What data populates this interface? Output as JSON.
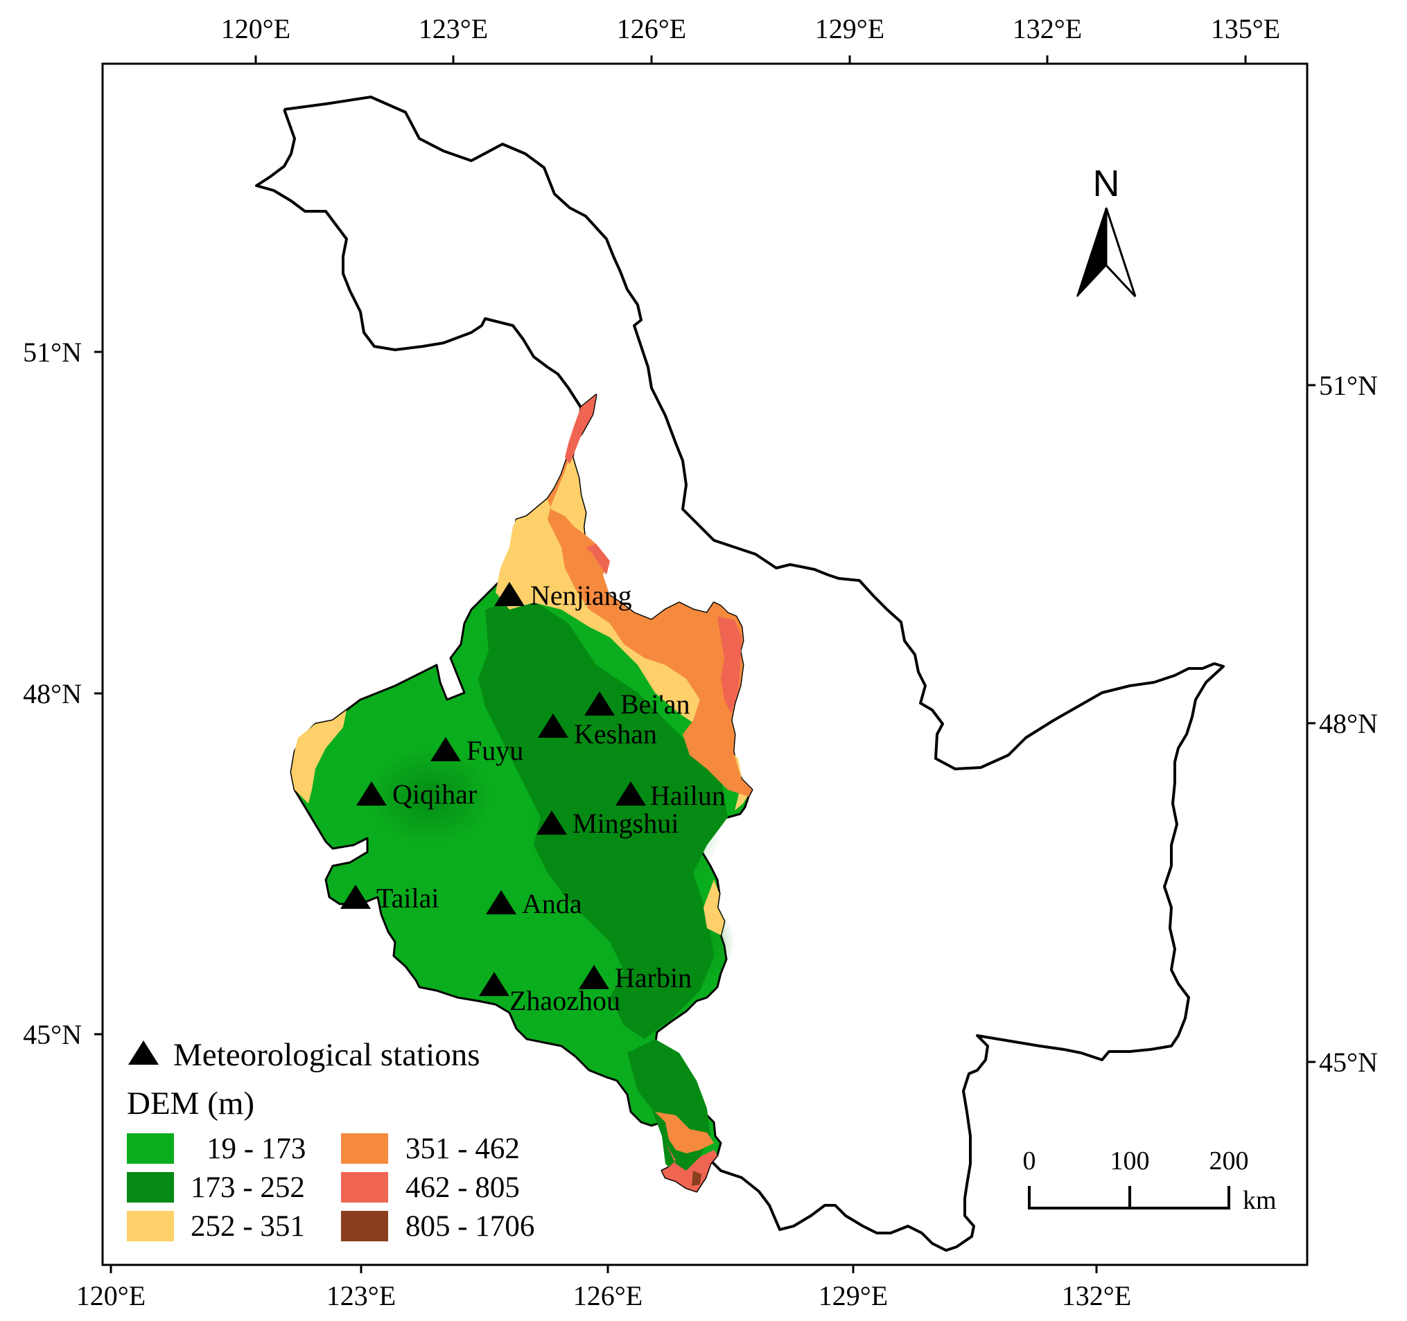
{
  "map": {
    "top_lon_ticks": [
      "120°E",
      "123°E",
      "126°E",
      "129°E",
      "132°E",
      "135°E"
    ],
    "bottom_lon_ticks": [
      "120°E",
      "123°E",
      "126°E",
      "129°E",
      "132°E"
    ],
    "left_lat_ticks": [
      "51°N",
      "48°N",
      "45°N"
    ],
    "right_lat_ticks": [
      "51°N",
      "48°N",
      "45°N"
    ],
    "north_arrow_label": "N",
    "stations": [
      {
        "name": "Nenjiang"
      },
      {
        "name": "Bei'an"
      },
      {
        "name": "Keshan"
      },
      {
        "name": "Fuyu"
      },
      {
        "name": "Qiqihar"
      },
      {
        "name": "Hailun"
      },
      {
        "name": "Mingshui"
      },
      {
        "name": "Tailai"
      },
      {
        "name": "Anda"
      },
      {
        "name": "Harbin"
      },
      {
        "name": "Zhaozhou"
      }
    ],
    "legend": {
      "stations_label": "Meteorological stations",
      "dem_title": "DEM (m)",
      "classes": [
        {
          "label": "19 - 173",
          "color": "#0aad1d"
        },
        {
          "label": "173 - 252",
          "color": "#058a14"
        },
        {
          "label": "252 - 351",
          "color": "#fdd06a"
        },
        {
          "label": "351 - 462",
          "color": "#f58a3e"
        },
        {
          "label": "462 - 805",
          "color": "#ef6552"
        },
        {
          "label": "805 - 1706",
          "color": "#8a3f1f"
        }
      ]
    },
    "scale_bar": {
      "labels": [
        "0",
        "100",
        "200"
      ],
      "unit": "km"
    }
  }
}
